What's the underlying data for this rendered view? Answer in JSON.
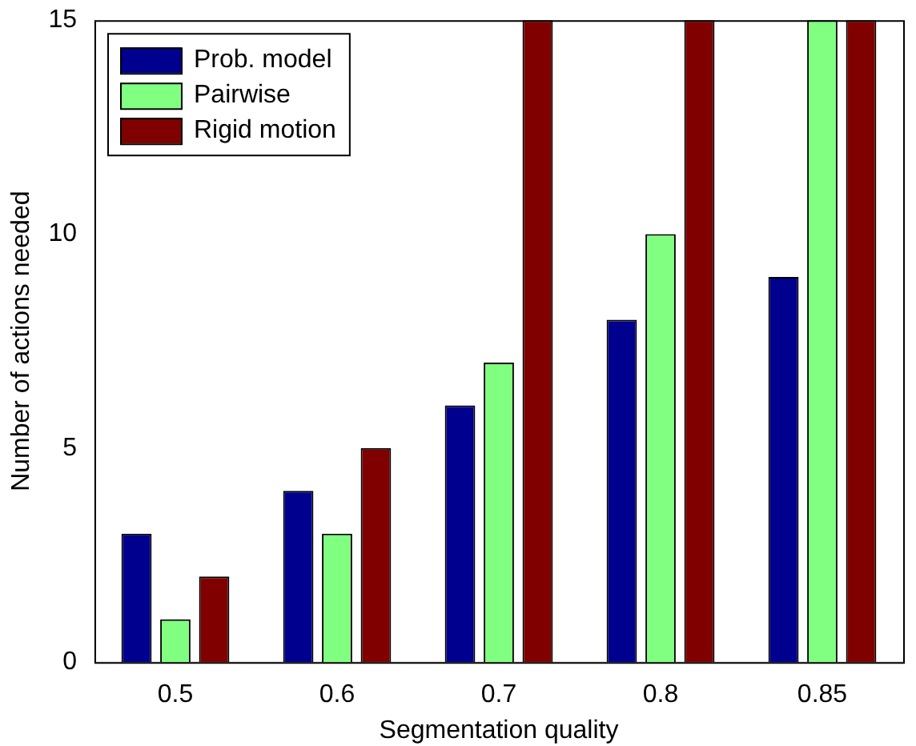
{
  "chart_data": {
    "type": "bar",
    "xlabel": "Segmentation quality",
    "ylabel": "Number of actions needed",
    "categories": [
      "0.5",
      "0.6",
      "0.7",
      "0.8",
      "0.85"
    ],
    "series": [
      {
        "name": "Prob. model",
        "color": "#00008f",
        "values": [
          3,
          4,
          6,
          8,
          9
        ]
      },
      {
        "name": "Pairwise",
        "color": "#80ff80",
        "values": [
          1,
          3,
          7,
          10,
          15
        ]
      },
      {
        "name": "Rigid motion",
        "color": "#800000",
        "values": [
          2,
          5,
          15,
          15,
          15
        ]
      }
    ],
    "ylim": [
      0,
      15
    ],
    "yticks": [
      0,
      5,
      10,
      15
    ],
    "grid": false,
    "legend": "top left"
  }
}
